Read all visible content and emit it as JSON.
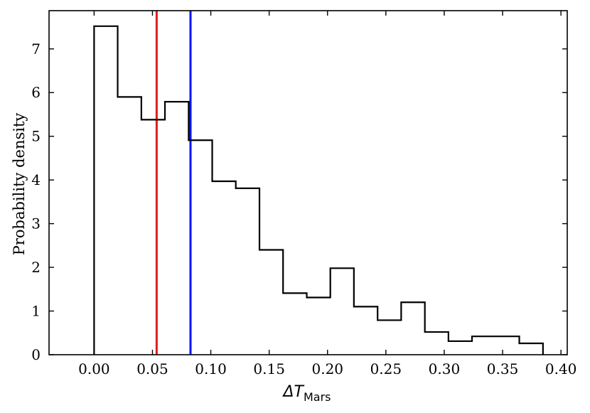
{
  "chart_data": {
    "type": "histogram",
    "ylabel": "Probability density",
    "xlabel_main": "ΔT",
    "xlabel_sub": "Mars",
    "xlim": [
      -0.0386,
      0.4054
    ],
    "ylim": [
      0,
      7.875
    ],
    "x_ticks": [
      "0.00",
      "0.05",
      "0.10",
      "0.15",
      "0.20",
      "0.25",
      "0.30",
      "0.35",
      "0.40"
    ],
    "x_tick_values": [
      0.0,
      0.05,
      0.1,
      0.15,
      0.2,
      0.25,
      0.3,
      0.35,
      0.4
    ],
    "y_ticks": [
      "0",
      "1",
      "2",
      "3",
      "4",
      "5",
      "6",
      "7"
    ],
    "y_tick_values": [
      0,
      1,
      2,
      3,
      4,
      5,
      6,
      7
    ],
    "bin_edges": [
      0.0,
      0.0202,
      0.0405,
      0.0607,
      0.081,
      0.1012,
      0.1214,
      0.1417,
      0.1619,
      0.1822,
      0.2024,
      0.2226,
      0.2429,
      0.2631,
      0.2834,
      0.3036,
      0.3238,
      0.3441,
      0.3643,
      0.3846
    ],
    "densities": [
      7.52,
      5.9,
      5.38,
      5.79,
      4.91,
      3.97,
      3.81,
      2.4,
      1.41,
      1.31,
      1.98,
      1.1,
      0.79,
      1.2,
      0.52,
      0.31,
      0.42,
      0.42,
      0.26
    ],
    "vlines": [
      {
        "x": 0.0536,
        "color": "#e41a1c"
      },
      {
        "x": 0.0826,
        "color": "#0015ff"
      }
    ],
    "histogram_color": "#000000"
  }
}
